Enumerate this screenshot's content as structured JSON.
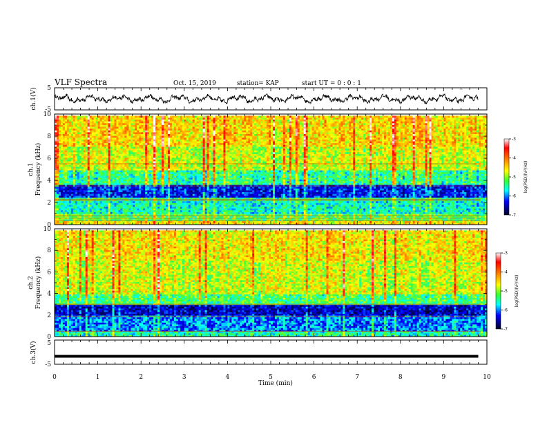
{
  "header": {
    "title": "VLF Spectra",
    "date": "Oct. 15, 2019",
    "station": "station= KAP",
    "start": "start UT =  0 : 0 : 1"
  },
  "chart_data": [
    {
      "type": "line",
      "panel": "ch1-waveform",
      "ylabel": "ch.1(V)",
      "ylim": [
        -5,
        5
      ],
      "yticks": [
        "5",
        "-5"
      ],
      "xlim": [
        0,
        10
      ],
      "x_extent": [
        0,
        9.8
      ],
      "series": [
        {
          "amplitude_range": [
            -2.2,
            2.2
          ],
          "mean": 0.0
        }
      ]
    },
    {
      "type": "heatmap",
      "panel": "ch1-spectrogram",
      "ylabel": "ch.1\nFrequency (kHz)",
      "ylabel_line1": "ch.1",
      "ylabel_line2": "Frequency (kHz)",
      "ylim": [
        0,
        10
      ],
      "yticks": [
        "0",
        "2",
        "4",
        "6",
        "8",
        "10"
      ],
      "xlim": [
        0,
        10
      ],
      "value_range": [
        -7,
        -3
      ],
      "colorbar_label": "log(PSD)(V²/Hz)",
      "colorbar_ticks": [
        "-3",
        "-4",
        "-5",
        "-6",
        "-7"
      ],
      "bands_khz": [
        {
          "from": 0.0,
          "to": 0.4,
          "level": -4.6
        },
        {
          "from": 0.4,
          "to": 1.0,
          "level": -5.2
        },
        {
          "from": 1.0,
          "to": 2.1,
          "level": -5.6
        },
        {
          "from": 2.1,
          "to": 2.5,
          "level": -5.4
        },
        {
          "from": 2.5,
          "to": 3.6,
          "level": -6.3
        },
        {
          "from": 3.6,
          "to": 5.0,
          "level": -5.4
        },
        {
          "from": 5.0,
          "to": 7.0,
          "level": -4.8
        },
        {
          "from": 7.0,
          "to": 10.0,
          "level": -4.5
        }
      ],
      "lines_khz": [
        0.4,
        0.6,
        0.8,
        2.2,
        2.3,
        3.5,
        5.5
      ]
    },
    {
      "type": "heatmap",
      "panel": "ch2-spectrogram",
      "ylabel": "ch.2\nFrequency (kHz)",
      "ylabel_line1": "ch.2",
      "ylabel_line2": "Frequency (kHz)",
      "ylim": [
        0,
        10
      ],
      "yticks": [
        "0",
        "2",
        "4",
        "6",
        "8",
        "10"
      ],
      "xlim": [
        0,
        10
      ],
      "value_range": [
        -7,
        -3
      ],
      "colorbar_label": "log(PSD)(V²/Hz)",
      "colorbar_ticks": [
        "-3",
        "-4",
        "-5",
        "-6",
        "-7"
      ],
      "bands_khz": [
        {
          "from": 0.0,
          "to": 0.5,
          "level": -5.5
        },
        {
          "from": 0.5,
          "to": 2.0,
          "level": -6.0
        },
        {
          "from": 2.0,
          "to": 3.0,
          "level": -6.5
        },
        {
          "from": 3.0,
          "to": 4.0,
          "level": -5.3
        },
        {
          "from": 4.0,
          "to": 7.0,
          "level": -4.8
        },
        {
          "from": 7.0,
          "to": 10.0,
          "level": -4.6
        }
      ],
      "lines_khz": [
        0.5,
        1.9,
        3.0
      ]
    },
    {
      "type": "line",
      "panel": "ch3-waveform",
      "ylabel": "ch.3(V)",
      "ylim": [
        -5,
        5
      ],
      "yticks": [
        "5",
        "-5"
      ],
      "xlim": [
        0,
        10
      ],
      "xlabel": "Time (min)",
      "xticks": [
        "0",
        "1",
        "2",
        "3",
        "4",
        "5",
        "6",
        "7",
        "8",
        "9",
        "10"
      ],
      "x_extent": [
        0,
        9.8
      ],
      "series": [
        {
          "constant_value": -1.7
        }
      ]
    }
  ]
}
